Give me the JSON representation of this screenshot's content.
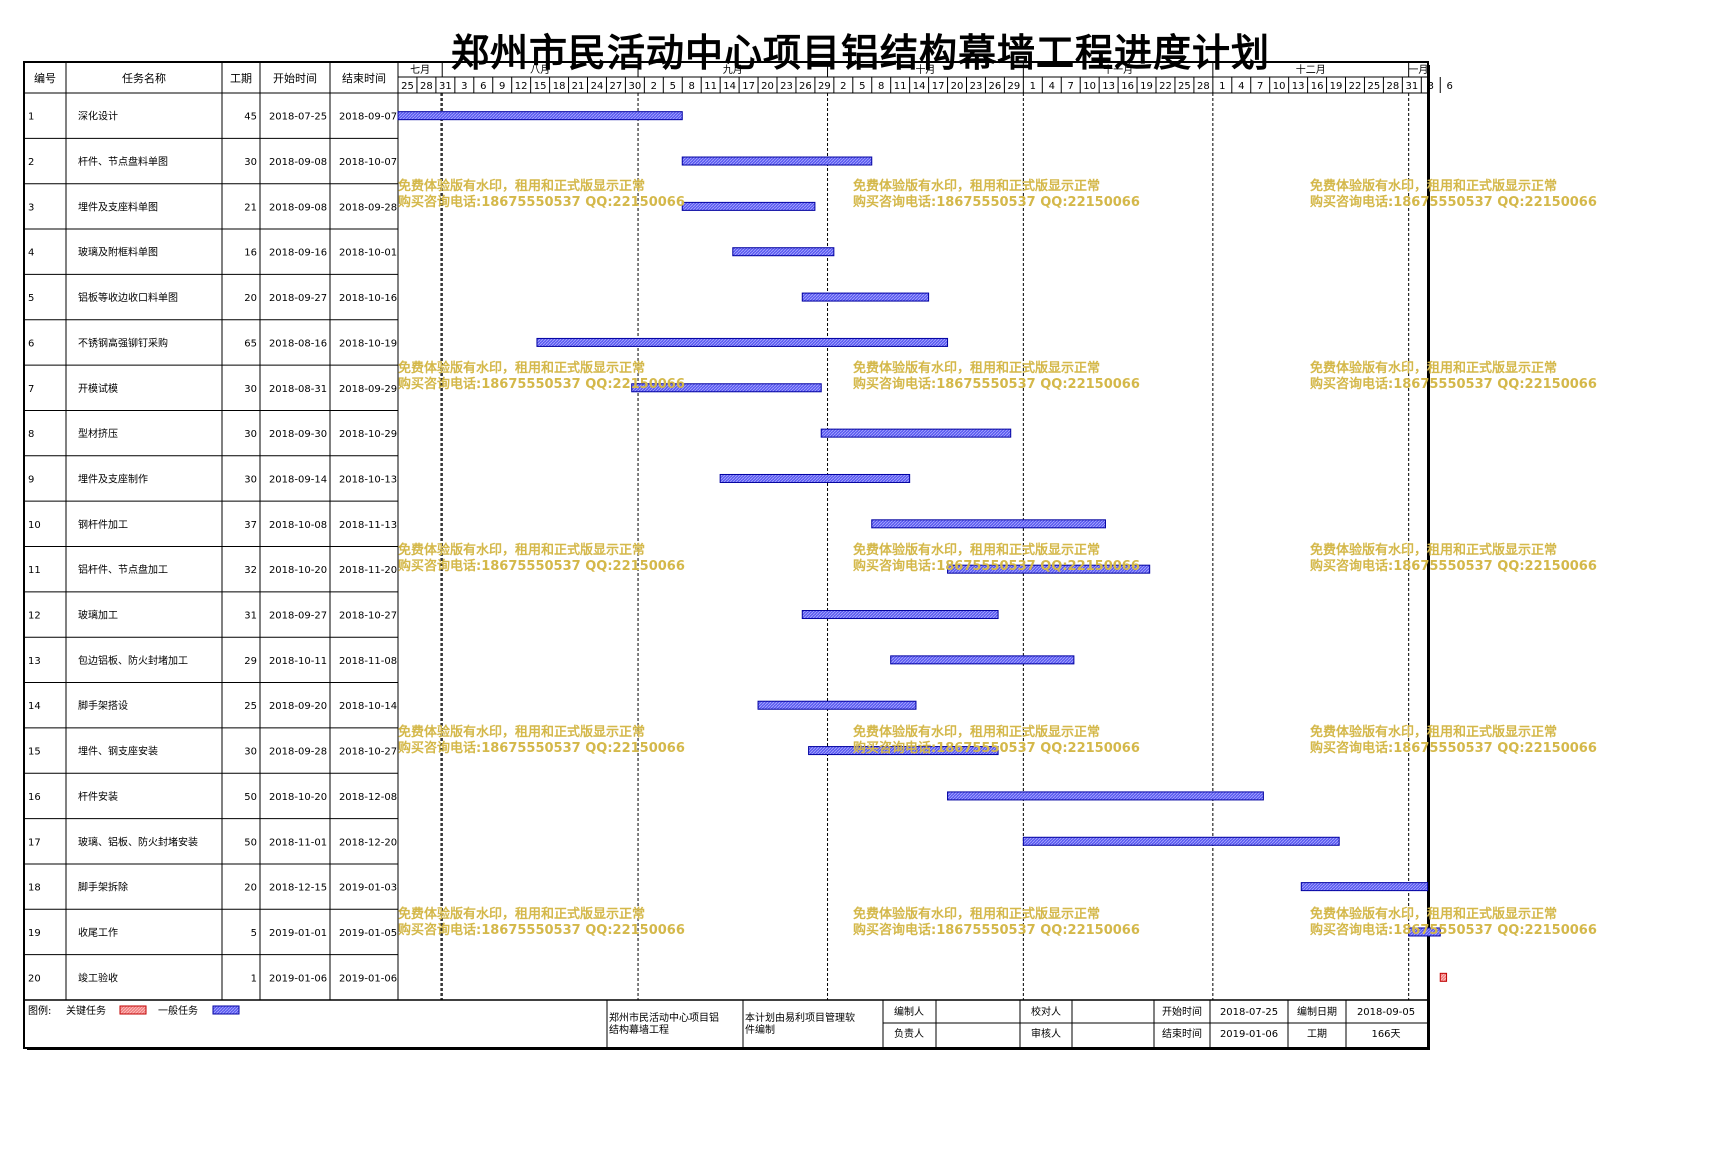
{
  "title": "郑州市民活动中心项目铝结构幕墙工程进度计划",
  "chart_data": {
    "type": "gantt",
    "columns": [
      "编号",
      "任务名称",
      "工期",
      "开始时间",
      "结束时间"
    ],
    "timeline": {
      "start": "2018-07-25",
      "months": [
        {
          "label": "七月",
          "start": "2018-07-25"
        },
        {
          "label": "八月",
          "start": "2018-08-01"
        },
        {
          "label": "九月",
          "start": "2018-09-01"
        },
        {
          "label": "十月",
          "start": "2018-10-01"
        },
        {
          "label": "十一月",
          "start": "2018-11-01"
        },
        {
          "label": "十二月",
          "start": "2018-12-01"
        },
        {
          "label": "一月",
          "start": "2019-01-01"
        }
      ],
      "ticks": [
        "25",
        "28",
        "31",
        "3",
        "6",
        "9",
        "12",
        "15",
        "18",
        "21",
        "24",
        "27",
        "30",
        "2",
        "5",
        "8",
        "11",
        "14",
        "17",
        "20",
        "23",
        "26",
        "29",
        "2",
        "5",
        "8",
        "11",
        "14",
        "17",
        "20",
        "23",
        "26",
        "29",
        "1",
        "4",
        "7",
        "10",
        "13",
        "16",
        "19",
        "22",
        "25",
        "28",
        "1",
        "4",
        "7",
        "10",
        "13",
        "16",
        "19",
        "22",
        "25",
        "28",
        "31",
        "3",
        "6"
      ]
    },
    "tasks": [
      {
        "id": "1",
        "name": "深化设计",
        "duration": "45",
        "start": "2018-07-25",
        "end": "2018-09-07",
        "type": "normal"
      },
      {
        "id": "2",
        "name": "杆件、节点盘料单图",
        "duration": "30",
        "start": "2018-09-08",
        "end": "2018-10-07",
        "type": "normal"
      },
      {
        "id": "3",
        "name": "埋件及支座料单图",
        "duration": "21",
        "start": "2018-09-08",
        "end": "2018-09-28",
        "type": "normal"
      },
      {
        "id": "4",
        "name": "玻璃及附框料单图",
        "duration": "16",
        "start": "2018-09-16",
        "end": "2018-10-01",
        "type": "normal"
      },
      {
        "id": "5",
        "name": "铝板等收边收口料单图",
        "duration": "20",
        "start": "2018-09-27",
        "end": "2018-10-16",
        "type": "normal"
      },
      {
        "id": "6",
        "name": "不锈钢高强铆钉采购",
        "duration": "65",
        "start": "2018-08-16",
        "end": "2018-10-19",
        "type": "normal"
      },
      {
        "id": "7",
        "name": "开模试模",
        "duration": "30",
        "start": "2018-08-31",
        "end": "2018-09-29",
        "type": "normal"
      },
      {
        "id": "8",
        "name": "型材挤压",
        "duration": "30",
        "start": "2018-09-30",
        "end": "2018-10-29",
        "type": "normal"
      },
      {
        "id": "9",
        "name": "埋件及支座制作",
        "duration": "30",
        "start": "2018-09-14",
        "end": "2018-10-13",
        "type": "normal"
      },
      {
        "id": "10",
        "name": "钢杆件加工",
        "duration": "37",
        "start": "2018-10-08",
        "end": "2018-11-13",
        "type": "normal"
      },
      {
        "id": "11",
        "name": "铝杆件、节点盘加工",
        "duration": "32",
        "start": "2018-10-20",
        "end": "2018-11-20",
        "type": "normal"
      },
      {
        "id": "12",
        "name": "玻璃加工",
        "duration": "31",
        "start": "2018-09-27",
        "end": "2018-10-27",
        "type": "normal"
      },
      {
        "id": "13",
        "name": "包边铝板、防火封堵加工",
        "duration": "29",
        "start": "2018-10-11",
        "end": "2018-11-08",
        "type": "normal"
      },
      {
        "id": "14",
        "name": "脚手架搭设",
        "duration": "25",
        "start": "2018-09-20",
        "end": "2018-10-14",
        "type": "normal"
      },
      {
        "id": "15",
        "name": "埋件、钢支座安装",
        "duration": "30",
        "start": "2018-09-28",
        "end": "2018-10-27",
        "type": "normal"
      },
      {
        "id": "16",
        "name": "杆件安装",
        "duration": "50",
        "start": "2018-10-20",
        "end": "2018-12-08",
        "type": "normal"
      },
      {
        "id": "17",
        "name": "玻璃、铝板、防火封堵安装",
        "duration": "50",
        "start": "2018-11-01",
        "end": "2018-12-20",
        "type": "normal"
      },
      {
        "id": "18",
        "name": "脚手架拆除",
        "duration": "20",
        "start": "2018-12-15",
        "end": "2019-01-03",
        "type": "normal"
      },
      {
        "id": "19",
        "name": "收尾工作",
        "duration": "5",
        "start": "2019-01-01",
        "end": "2019-01-05",
        "type": "normal"
      },
      {
        "id": "20",
        "name": "竣工验收",
        "duration": "1",
        "start": "2019-01-06",
        "end": "2019-01-06",
        "type": "critical"
      }
    ],
    "legend": {
      "label": "图例:",
      "critical": "关键任务",
      "normal": "一般任务"
    },
    "colors": {
      "normal_fill": "#5b5bf0",
      "normal_border": "#0000a0",
      "critical_fill": "#f08080",
      "critical_border": "#c00000",
      "watermark": "#d4b84a",
      "grid": "#000000"
    }
  },
  "footer": {
    "project_name": "郑州市民活动中心项目铝结构幕墙工程",
    "software_note": "本计划由易利项目管理软件编制",
    "compiler_label": "编制人",
    "compiler": "",
    "checker_label": "校对人",
    "checker": "",
    "responsible_label": "负责人",
    "responsible": "",
    "reviewer_label": "审核人",
    "reviewer": "",
    "start_label": "开始时间",
    "start": "2018-07-25",
    "end_label": "结束时间",
    "end": "2019-01-06",
    "date_label": "编制日期",
    "date": "2018-09-05",
    "duration_label": "工期",
    "duration": "166天"
  },
  "watermark": {
    "line1": "免费体验版有水印，租用和正式版显示正常",
    "line2": "购买咨询电话:18675550537 QQ:22150066"
  }
}
